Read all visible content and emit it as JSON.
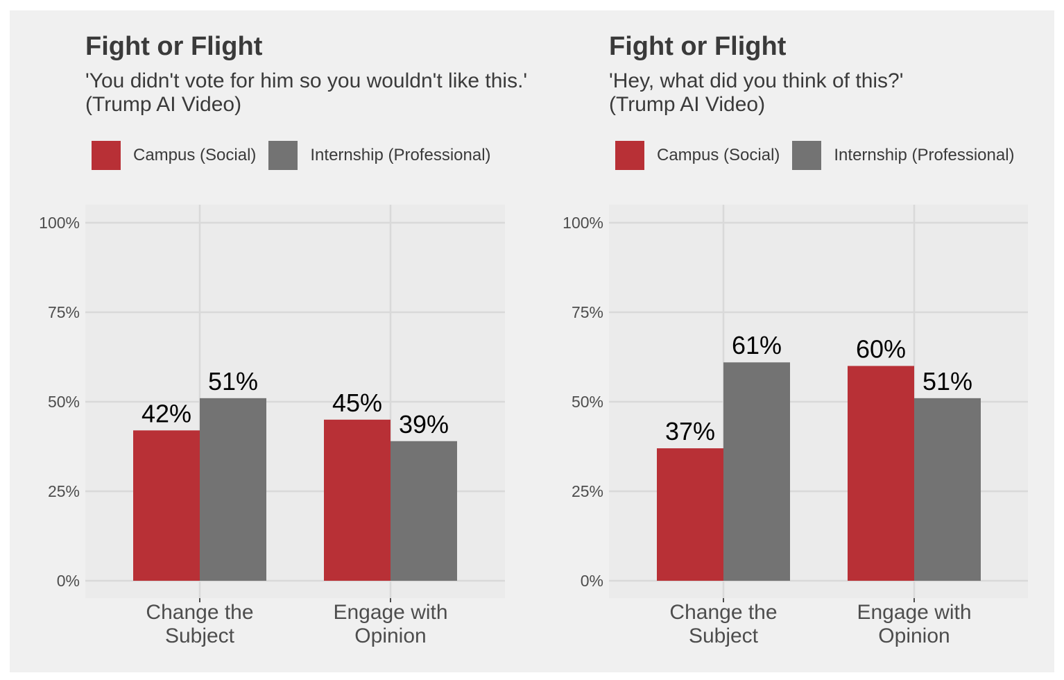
{
  "colors": {
    "campus": "#b83036",
    "internship": "#737373",
    "background": "#f0f0f0",
    "panel_background": "#ebebeb",
    "grid": "#d9d9d9",
    "text": "#3a3a3a"
  },
  "chart_data": [
    {
      "type": "bar",
      "title": "Fight or Flight",
      "subtitle_lines": [
        "'You didn't vote for him so you wouldn't like this.'",
        "(Trump AI Video)"
      ],
      "categories": [
        "Change the Subject",
        "Engage with Opinion"
      ],
      "category_lines": [
        [
          "Change the",
          "Subject"
        ],
        [
          "Engage with",
          "Opinion"
        ]
      ],
      "series": [
        {
          "name": "Campus (Social)",
          "values": [
            42,
            45
          ],
          "labels": [
            "42%",
            "45%"
          ]
        },
        {
          "name": "Internship (Professional)",
          "values": [
            51,
            39
          ],
          "labels": [
            "51%",
            "39%"
          ]
        }
      ],
      "ylim": [
        0,
        100
      ],
      "yticks": [
        0,
        25,
        50,
        75,
        100
      ],
      "ytick_labels": [
        "0%",
        "25%",
        "50%",
        "75%",
        "100%"
      ],
      "legend_position": "top-left",
      "grid": true
    },
    {
      "type": "bar",
      "title": "Fight or Flight",
      "subtitle_lines": [
        "'Hey, what did you think of this?'",
        "(Trump AI Video)"
      ],
      "categories": [
        "Change the Subject",
        "Engage with Opinion"
      ],
      "category_lines": [
        [
          "Change the",
          "Subject"
        ],
        [
          "Engage with",
          "Opinion"
        ]
      ],
      "series": [
        {
          "name": "Campus (Social)",
          "values": [
            37,
            60
          ],
          "labels": [
            "37%",
            "60%"
          ]
        },
        {
          "name": "Internship (Professional)",
          "values": [
            61,
            51
          ],
          "labels": [
            "61%",
            "51%"
          ]
        }
      ],
      "ylim": [
        0,
        100
      ],
      "yticks": [
        0,
        25,
        50,
        75,
        100
      ],
      "ytick_labels": [
        "0%",
        "25%",
        "50%",
        "75%",
        "100%"
      ],
      "legend_position": "top-left",
      "grid": true
    }
  ]
}
